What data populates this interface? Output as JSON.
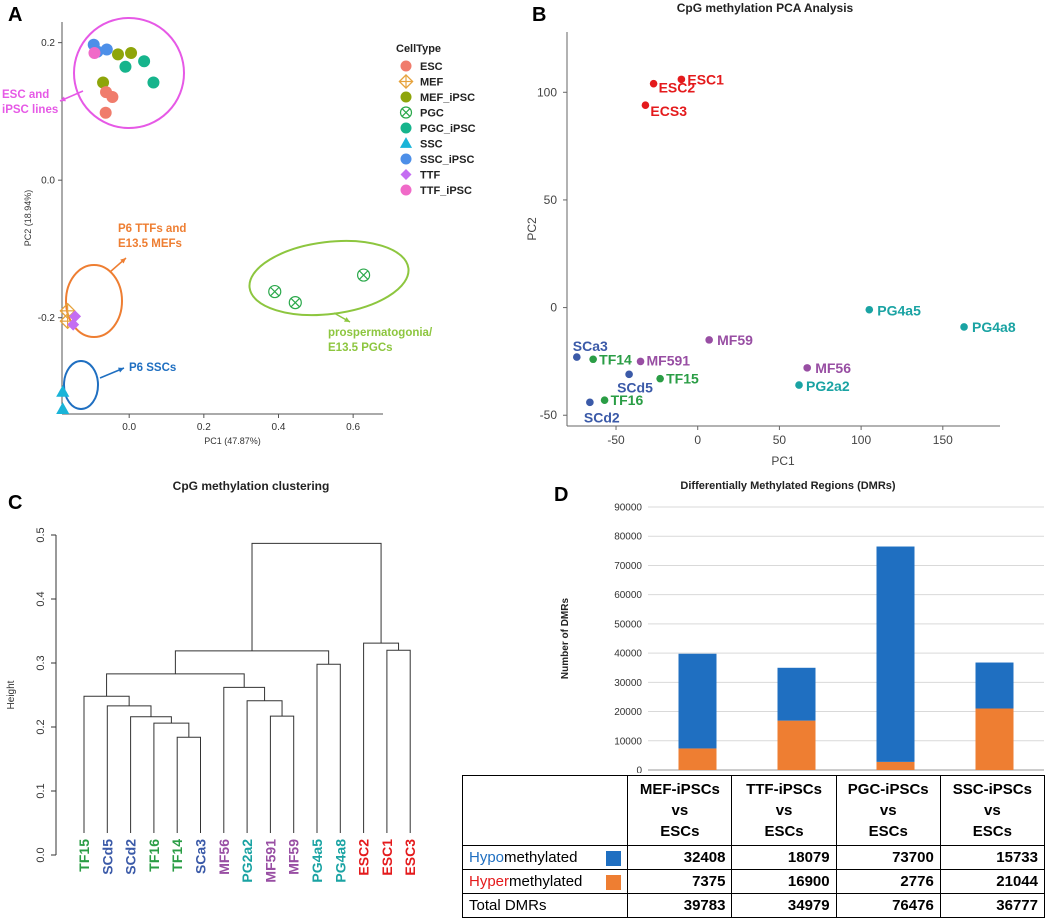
{
  "panel_letters": {
    "a": "A",
    "b": "B",
    "c": "C",
    "d": "D"
  },
  "colors": {
    "esc_red": "#e41a1c",
    "mef_purple": "#984ea3",
    "pgc_teal": "#1aa3a3",
    "ssc_blue": "#3b5aa8",
    "ttf_green": "#2a9d45",
    "hypo": "#1f6fc1",
    "hyper": "#ee7e32",
    "pink_circle": "#e659e6",
    "orange_circle": "#ee7e32",
    "green_circle": "#8dc63f",
    "blue_circle": "#1f6fc1"
  },
  "chart_data": [
    {
      "type": "scatter",
      "panel": "A",
      "xlabel": "PC1 (47.87%)",
      "ylabel": "PC2 (18.94%)",
      "xlim": [
        -0.18,
        0.68
      ],
      "ylim": [
        -0.34,
        0.23
      ],
      "x_ticks": [
        {
          "v": 0.0,
          "label": "0.0"
        },
        {
          "v": 0.2,
          "label": "0.2"
        },
        {
          "v": 0.4,
          "label": "0.4"
        },
        {
          "v": 0.6,
          "label": "0.6"
        }
      ],
      "y_ticks": [
        {
          "v": 0.2,
          "label": "0.2"
        },
        {
          "v": 0.0,
          "label": "0.0"
        },
        {
          "v": -0.2,
          "label": "-0.2"
        }
      ],
      "legend": {
        "title": "CellType",
        "position": "top-right",
        "items": [
          {
            "label": "ESC",
            "color": "#f07c6c",
            "shape": "circle"
          },
          {
            "label": "MEF",
            "color": "#e6a23c",
            "shape": "diamond-cross"
          },
          {
            "label": "MEF_iPSC",
            "color": "#8ea50a",
            "shape": "circle"
          },
          {
            "label": "PGC",
            "color": "#2aa84a",
            "shape": "circle-x"
          },
          {
            "label": "PGC_iPSC",
            "color": "#16b48c",
            "shape": "circle"
          },
          {
            "label": "SSC",
            "color": "#1ab4d8",
            "shape": "triangle"
          },
          {
            "label": "SSC_iPSC",
            "color": "#4d8fe8",
            "shape": "circle"
          },
          {
            "label": "TTF",
            "color": "#c46ef2",
            "shape": "diamond"
          },
          {
            "label": "TTF_iPSC",
            "color": "#f06ac8",
            "shape": "circle"
          }
        ]
      },
      "points": [
        {
          "type": "SSC_iPSC",
          "x": -0.095,
          "y": 0.197
        },
        {
          "type": "SSC_iPSC",
          "x": -0.085,
          "y": 0.187
        },
        {
          "type": "SSC_iPSC",
          "x": -0.06,
          "y": 0.19
        },
        {
          "type": "TTF_iPSC",
          "x": -0.093,
          "y": 0.185
        },
        {
          "type": "MEF_iPSC",
          "x": -0.03,
          "y": 0.183
        },
        {
          "type": "MEF_iPSC",
          "x": 0.005,
          "y": 0.185
        },
        {
          "type": "MEF_iPSC",
          "x": -0.07,
          "y": 0.142
        },
        {
          "type": "PGC_iPSC",
          "x": 0.04,
          "y": 0.173
        },
        {
          "type": "PGC_iPSC",
          "x": -0.01,
          "y": 0.165
        },
        {
          "type": "PGC_iPSC",
          "x": 0.065,
          "y": 0.142
        },
        {
          "type": "ESC",
          "x": -0.062,
          "y": 0.128
        },
        {
          "type": "ESC",
          "x": -0.045,
          "y": 0.121
        },
        {
          "type": "ESC",
          "x": -0.063,
          "y": 0.098
        },
        {
          "type": "MEF",
          "x": -0.165,
          "y": -0.19
        },
        {
          "type": "MEF",
          "x": -0.165,
          "y": -0.205
        },
        {
          "type": "TTF",
          "x": -0.145,
          "y": -0.198
        },
        {
          "type": "TTF",
          "x": -0.15,
          "y": -0.21
        },
        {
          "type": "PGC",
          "x": 0.39,
          "y": -0.162
        },
        {
          "type": "PGC",
          "x": 0.445,
          "y": -0.178
        },
        {
          "type": "PGC",
          "x": 0.628,
          "y": -0.138
        },
        {
          "type": "SSC",
          "x": -0.178,
          "y": -0.308
        },
        {
          "type": "SSC",
          "x": -0.178,
          "y": -0.333
        }
      ],
      "annotations": [
        {
          "id": "esc",
          "lines": [
            "ESC and",
            "iPSC lines"
          ]
        },
        {
          "id": "mef",
          "lines": [
            "P6 TTFs and",
            "E13.5 MEFs"
          ]
        },
        {
          "id": "pgc",
          "lines": [
            "prospermatogonia/",
            "E13.5 PGCs"
          ]
        },
        {
          "id": "ssc",
          "lines": [
            "P6 SSCs"
          ]
        }
      ]
    },
    {
      "type": "scatter",
      "panel": "B",
      "title": "CpG methylation PCA Analysis",
      "xlabel": "PC1",
      "ylabel": "PC2",
      "xlim": [
        -80,
        185
      ],
      "ylim": [
        -55,
        128
      ],
      "x_ticks": [
        -50,
        0,
        50,
        100,
        150
      ],
      "y_ticks": [
        -50,
        0,
        50,
        100
      ],
      "points": [
        {
          "label": "ESC1",
          "x": -10,
          "y": 106,
          "group": "ESC"
        },
        {
          "label": "ESC2",
          "x": -27,
          "y": 104,
          "group": "ESC"
        },
        {
          "label": "ECS3",
          "x": -32,
          "y": 94,
          "group": "ESC"
        },
        {
          "label": "PG4a5",
          "x": 105,
          "y": -1,
          "group": "PGC"
        },
        {
          "label": "PG4a8",
          "x": 163,
          "y": -9,
          "group": "PGC"
        },
        {
          "label": "PG2a2",
          "x": 62,
          "y": -36,
          "group": "PGC"
        },
        {
          "label": "MF59",
          "x": 7,
          "y": -15,
          "group": "MEF"
        },
        {
          "label": "MF591",
          "x": -35,
          "y": -25,
          "group": "MEF"
        },
        {
          "label": "MF56",
          "x": 67,
          "y": -28,
          "group": "MEF"
        },
        {
          "label": "SCa3",
          "x": -74,
          "y": -23,
          "group": "SSC"
        },
        {
          "label": "SCd5",
          "x": -42,
          "y": -31,
          "group": "SSC"
        },
        {
          "label": "SCd2",
          "x": -66,
          "y": -44,
          "group": "SSC"
        },
        {
          "label": "TF14",
          "x": -64,
          "y": -24,
          "group": "TTF"
        },
        {
          "label": "TF15",
          "x": -23,
          "y": -33,
          "group": "TTF"
        },
        {
          "label": "TF16",
          "x": -57,
          "y": -43,
          "group": "TTF"
        }
      ]
    },
    {
      "type": "dendrogram",
      "panel": "C",
      "title": "CpG methylation clustering",
      "ylabel": "Height",
      "ylim": [
        0,
        0.5
      ],
      "y_ticks": [
        "0.0",
        "0.1",
        "0.2",
        "0.3",
        "0.4",
        "0.5"
      ],
      "leaves": [
        {
          "label": "TF15",
          "group": "TTF"
        },
        {
          "label": "SCd5",
          "group": "SSC"
        },
        {
          "label": "SCd2",
          "group": "SSC"
        },
        {
          "label": "TF16",
          "group": "TTF"
        },
        {
          "label": "TF14",
          "group": "TTF"
        },
        {
          "label": "SCa3",
          "group": "SSC"
        },
        {
          "label": "MF56",
          "group": "MEF"
        },
        {
          "label": "PG2a2",
          "group": "PGC"
        },
        {
          "label": "MF591",
          "group": "MEF"
        },
        {
          "label": "MF59",
          "group": "MEF"
        },
        {
          "label": "PG4a5",
          "group": "PGC"
        },
        {
          "label": "PG4a8",
          "group": "PGC"
        },
        {
          "label": "ESC2",
          "group": "ESC"
        },
        {
          "label": "ESC1",
          "group": "ESC"
        },
        {
          "label": "ESC3",
          "group": "ESC"
        }
      ],
      "merges": [
        {
          "a": 4,
          "b": 5,
          "h": 0.184
        },
        {
          "a": 3,
          "b": "m0",
          "h": 0.206
        },
        {
          "a": 2,
          "b": "m1",
          "h": 0.216
        },
        {
          "a": 1,
          "b": "m2",
          "h": 0.233
        },
        {
          "a": 0,
          "b": "m3",
          "h": 0.248
        },
        {
          "a": 8,
          "b": 9,
          "h": 0.217
        },
        {
          "a": 7,
          "b": "m5",
          "h": 0.241
        },
        {
          "a": 6,
          "b": "m6",
          "h": 0.262
        },
        {
          "a": "m4",
          "b": "m7",
          "h": 0.283
        },
        {
          "a": 10,
          "b": 11,
          "h": 0.298
        },
        {
          "a": "m8",
          "b": "m9",
          "h": 0.319
        },
        {
          "a": 13,
          "b": 14,
          "h": 0.32
        },
        {
          "a": 12,
          "b": "m11",
          "h": 0.331
        },
        {
          "a": "m10",
          "b": "m12",
          "h": 0.487
        }
      ]
    },
    {
      "type": "bar",
      "panel": "D",
      "stacked": true,
      "title": "Differentially Methylated Regions (DMRs)",
      "ylabel": "Number of DMRs",
      "ylim": [
        0,
        90000
      ],
      "y_ticks": [
        "0",
        "10000",
        "20000",
        "30000",
        "40000",
        "50000",
        "60000",
        "70000",
        "80000",
        "90000"
      ],
      "categories": [
        "MEF-iPSCs vs ESCs",
        "TTF-iPSCs vs ESCs",
        "PGC-iPSCs vs ESCs",
        "SSC-iPSCs vs ESCs"
      ],
      "series": [
        {
          "name": "Hypermethylated",
          "values": [
            7375,
            16900,
            2776,
            21044
          ]
        },
        {
          "name": "Hypomethylated",
          "values": [
            32408,
            18079,
            73700,
            15733
          ]
        }
      ]
    }
  ],
  "dmr_table": {
    "headers": [
      [
        "MEF-iPSCs",
        "vs",
        "ESCs"
      ],
      [
        "TTF-iPSCs",
        "vs",
        "ESCs"
      ],
      [
        "PGC-iPSCs",
        "vs",
        "ESCs"
      ],
      [
        "SSC-iPSCs",
        "vs",
        "ESCs"
      ]
    ],
    "rows": [
      {
        "label_colored": "Hypo",
        "label_rest": "methylated",
        "values": [
          "32408",
          "18079",
          "73700",
          "15733"
        ]
      },
      {
        "label_colored": "Hyper",
        "label_rest": "methylated",
        "values": [
          "7375",
          "16900",
          "2776",
          "21044"
        ]
      },
      {
        "label": "Total DMRs",
        "values": [
          "39783",
          "34979",
          "76476",
          "36777"
        ]
      }
    ]
  }
}
